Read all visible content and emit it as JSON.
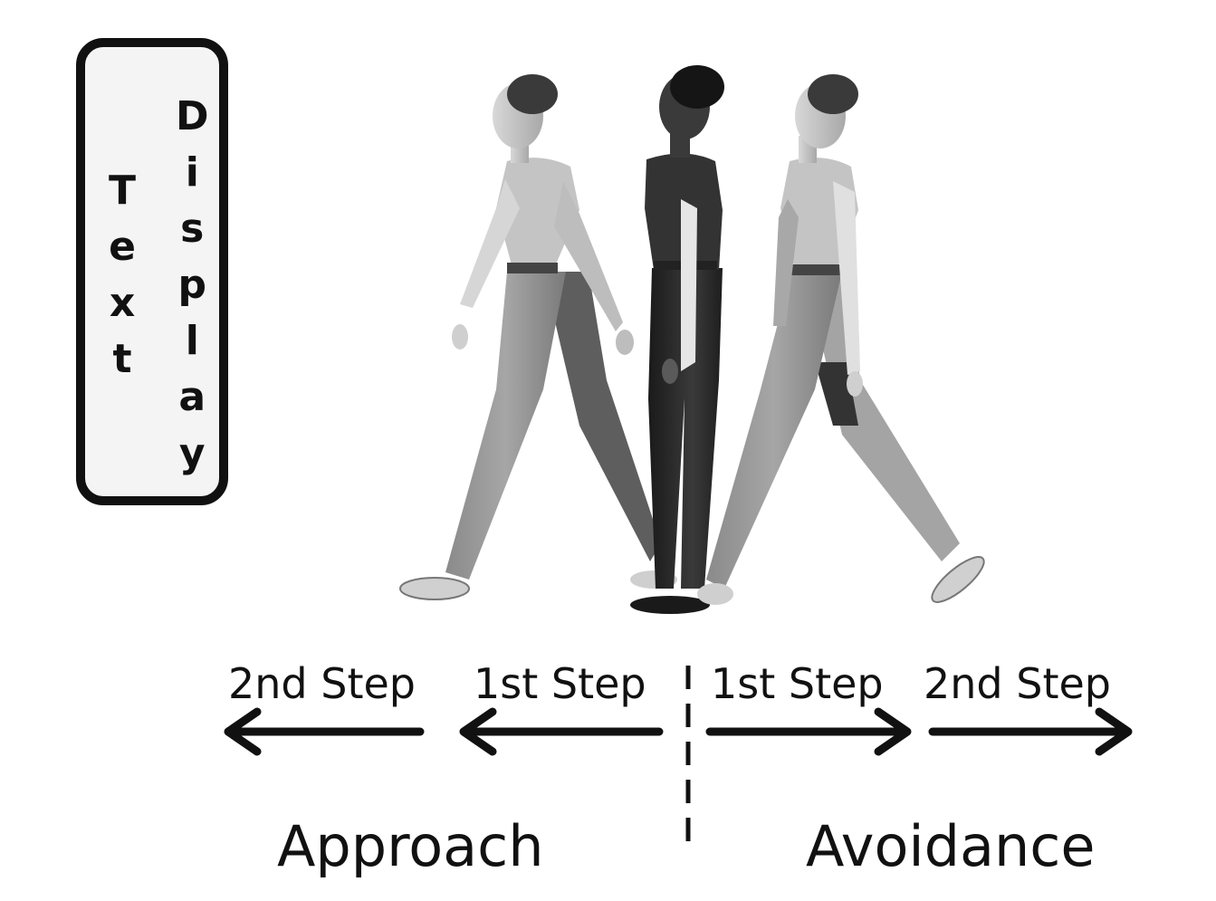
{
  "text_display": {
    "word1": [
      "T",
      "e",
      "x",
      "t"
    ],
    "word2": [
      "D",
      "i",
      "s",
      "p",
      "l",
      "a",
      "y"
    ]
  },
  "steps": {
    "left_second": "2nd Step",
    "left_first": "1st Step",
    "right_first": "1st Step",
    "right_second": "2nd Step"
  },
  "categories": {
    "approach": "Approach",
    "avoidance": "Avoidance"
  },
  "colors": {
    "light_figure": "#9a9a9a",
    "light_shirt": "#c4c4c4",
    "dark_figure": "#2a2a2a",
    "arrow": "#111111"
  }
}
